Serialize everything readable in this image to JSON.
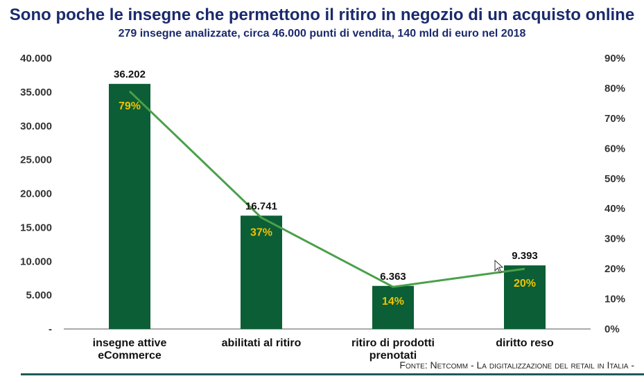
{
  "title": "Sono poche le insegne che permettono il ritiro in negozio di un acquisto online",
  "subtitle": "279 insegne analizzate, circa 46.000 punti di vendita, 140 mld di euro nel 2018",
  "source": "Fonte: Netcomm - La digitalizzazione del retail in Italia -",
  "chart_data": {
    "type": "bar",
    "categories": [
      [
        "insegne attive",
        "eCommerce"
      ],
      [
        "abilitati al ritiro"
      ],
      [
        "ritiro di prodotti",
        "prenotati"
      ],
      [
        "diritto reso"
      ]
    ],
    "values": [
      36202,
      16741,
      6363,
      9393
    ],
    "value_labels": [
      "36.202",
      "16.741",
      "6.363",
      "9.393"
    ],
    "line_values": [
      79,
      37,
      14,
      20
    ],
    "line_labels": [
      "79%",
      "37%",
      "14%",
      "20%"
    ],
    "ylim": [
      0,
      40000
    ],
    "yticks": [
      0,
      5000,
      10000,
      15000,
      20000,
      25000,
      30000,
      35000,
      40000
    ],
    "ytick_labels": [
      "-",
      "5.000",
      "10.000",
      "15.000",
      "20.000",
      "25.000",
      "30.000",
      "35.000",
      "40.000"
    ],
    "y2lim": [
      0,
      90
    ],
    "y2ticks": [
      0,
      10,
      20,
      30,
      40,
      50,
      60,
      70,
      80,
      90
    ],
    "y2tick_labels": [
      "0%",
      "10%",
      "20%",
      "30%",
      "40%",
      "50%",
      "60%",
      "70%",
      "80%",
      "90%"
    ],
    "bar_color": "#0b5e35",
    "line_color": "#4aa04a",
    "label_color": "#f2c200"
  }
}
